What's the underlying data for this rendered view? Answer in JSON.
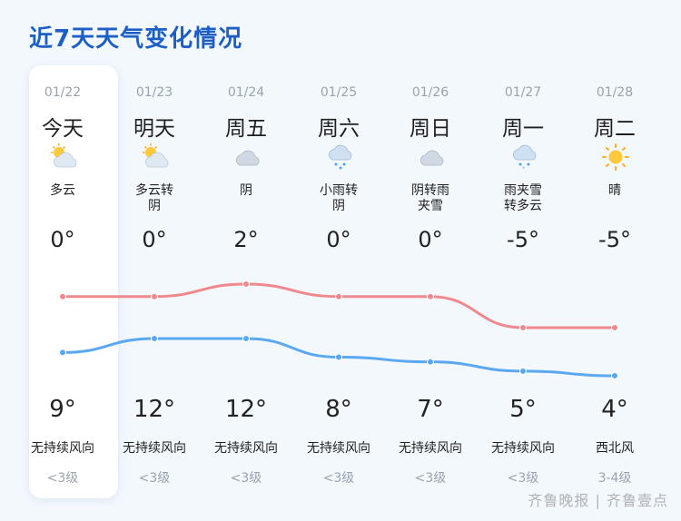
{
  "title": "近7天天气变化情况",
  "watermark": "齐鲁晚报 | 齐鲁壹点",
  "colors": {
    "high_line": "#f0898d",
    "low_line": "#5aa8f0",
    "title": "#1d5fc4"
  },
  "days": [
    {
      "date": "01/22",
      "day": "今天",
      "icon": "partly-cloudy-icon",
      "weather": "多云",
      "high": "0°",
      "low": "9°",
      "wind_dir": "无持续风向",
      "wind_level": "<3级"
    },
    {
      "date": "01/23",
      "day": "明天",
      "icon": "partly-cloudy-icon",
      "weather": "多云转\n阴",
      "high": "0°",
      "low": "12°",
      "wind_dir": "无持续风向",
      "wind_level": "<3级"
    },
    {
      "date": "01/24",
      "day": "周五",
      "icon": "overcast-icon",
      "weather": "阴",
      "high": "2°",
      "low": "12°",
      "wind_dir": "无持续风向",
      "wind_level": "<3级"
    },
    {
      "date": "01/25",
      "day": "周六",
      "icon": "light-rain-icon",
      "weather": "小雨转\n阴",
      "high": "0°",
      "low": "8°",
      "wind_dir": "无持续风向",
      "wind_level": "<3级"
    },
    {
      "date": "01/26",
      "day": "周日",
      "icon": "overcast-icon",
      "weather": "阴转雨\n夹雪",
      "high": "0°",
      "low": "7°",
      "wind_dir": "无持续风向",
      "wind_level": "<3级"
    },
    {
      "date": "01/27",
      "day": "周一",
      "icon": "sleet-icon",
      "weather": "雨夹雪\n转多云",
      "high": "-5°",
      "low": "5°",
      "wind_dir": "无持续风向",
      "wind_level": "<3级"
    },
    {
      "date": "01/28",
      "day": "周二",
      "icon": "sunny-icon",
      "weather": "晴",
      "high": "-5°",
      "low": "4°",
      "wind_dir": "西北风",
      "wind_level": "3-4级"
    }
  ]
}
